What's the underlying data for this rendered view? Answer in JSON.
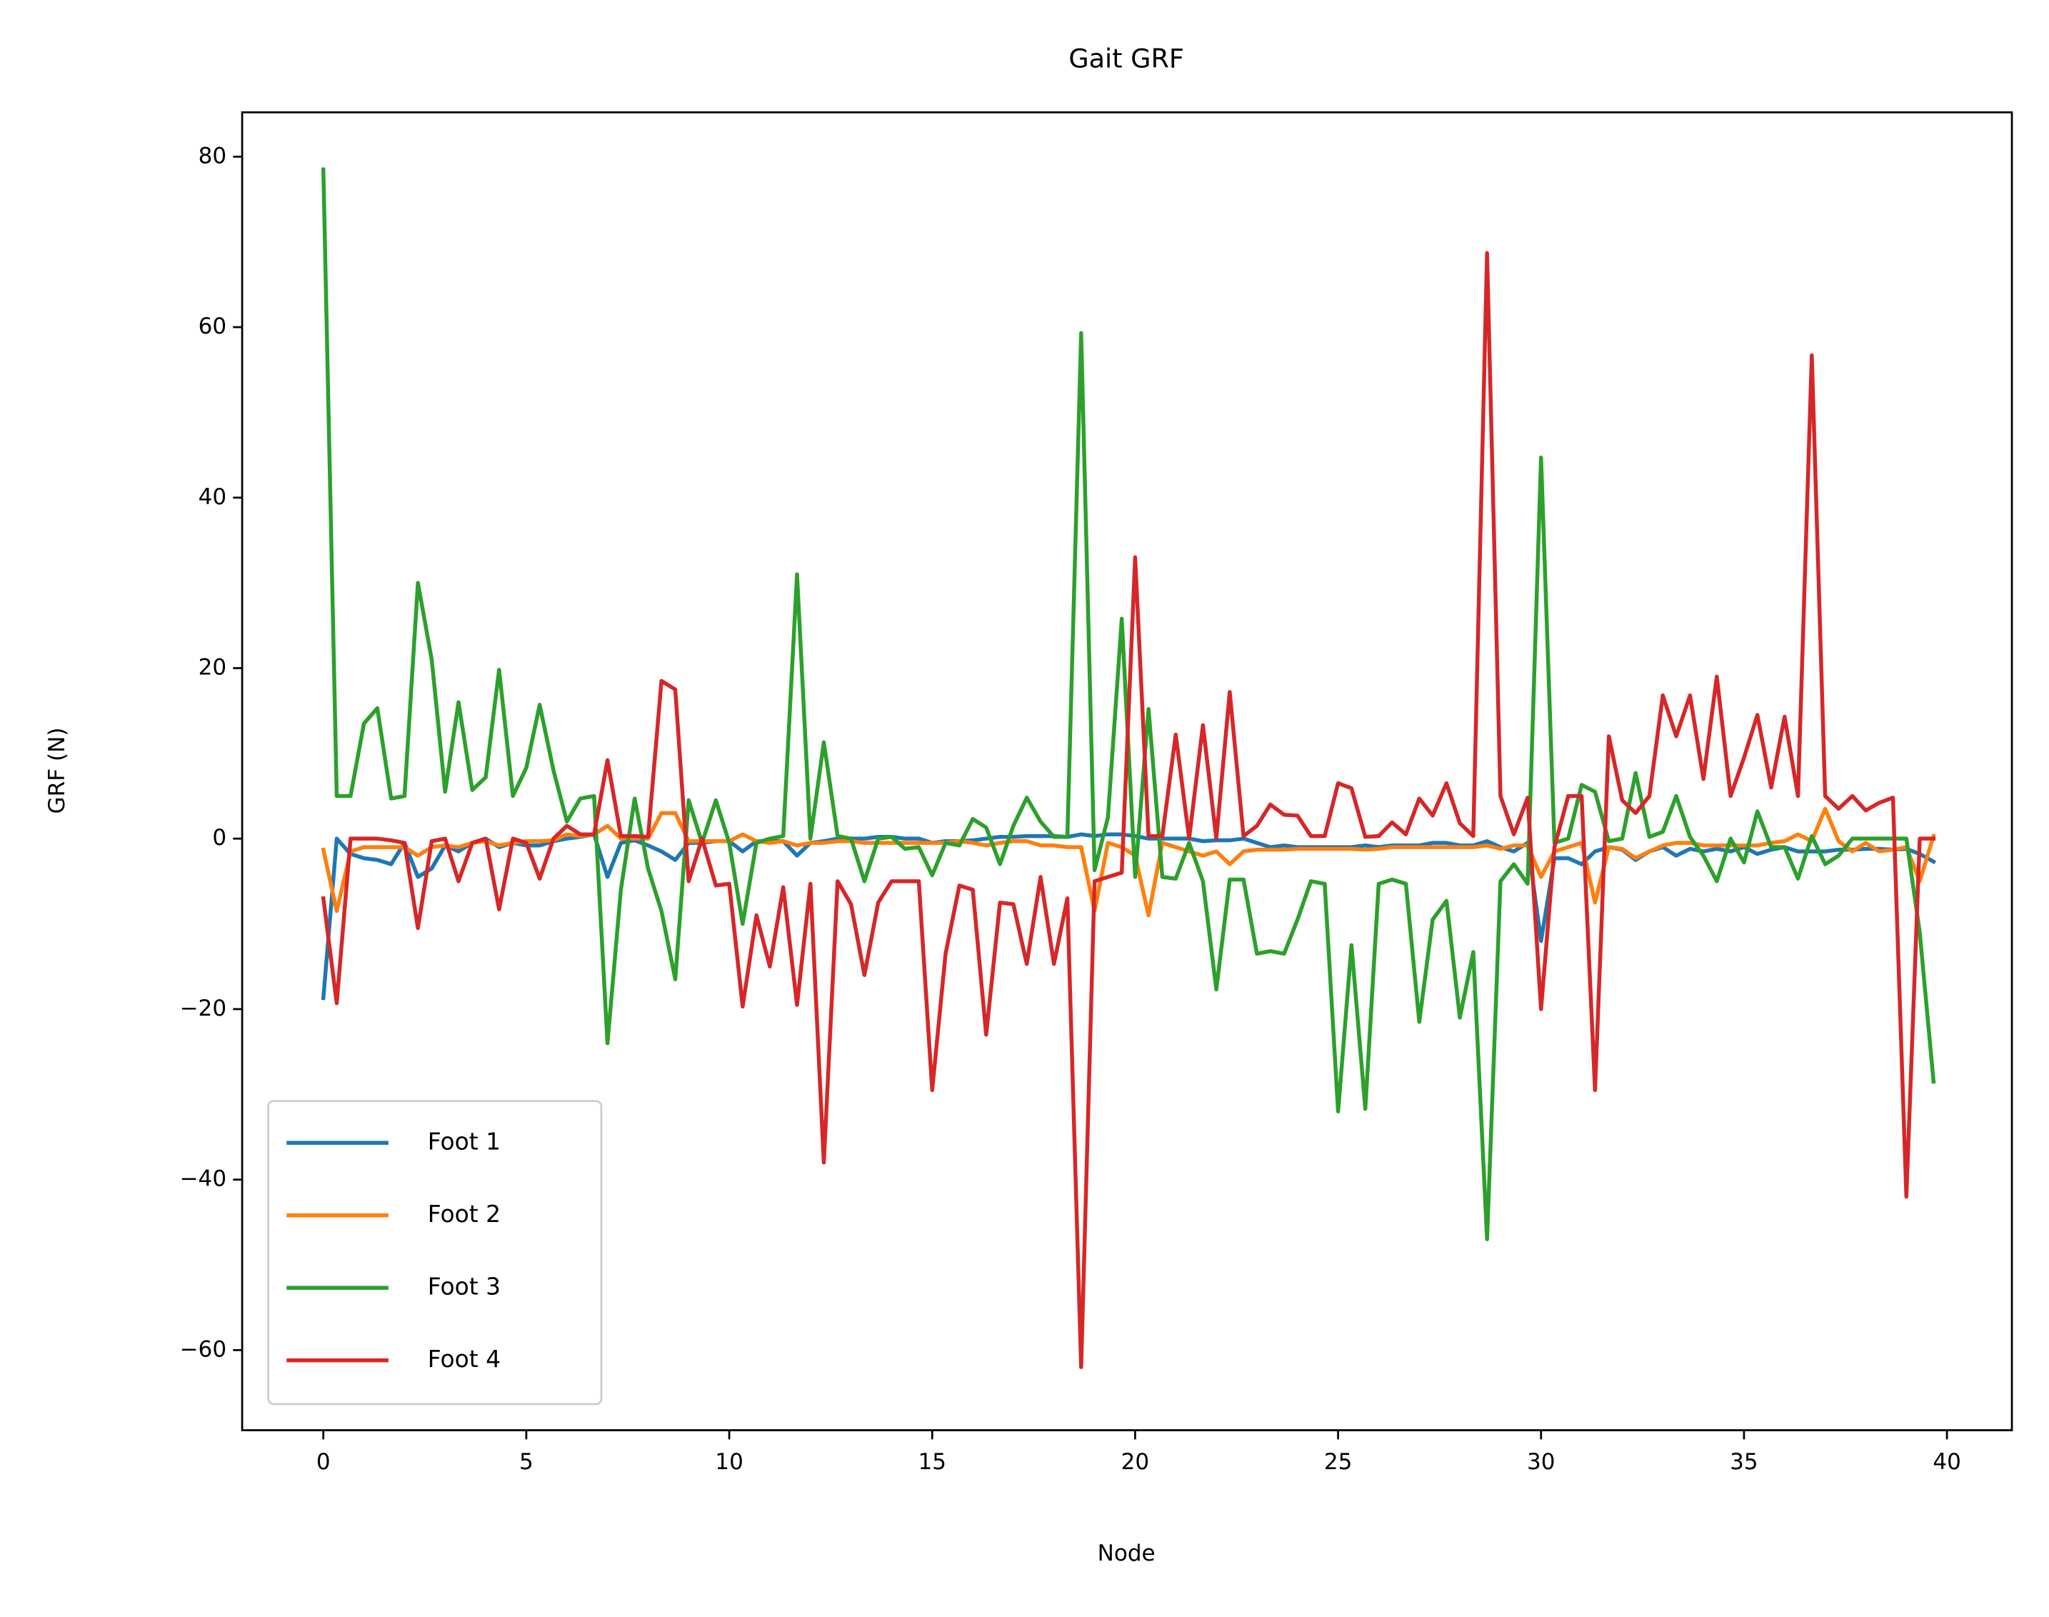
{
  "chart_data": {
    "type": "line",
    "title": "Gait GRF",
    "x_label": "Node",
    "y_label": "GRF (N)",
    "x": [
      0,
      0.33,
      0.67,
      1,
      1.33,
      1.67,
      2,
      2.33,
      2.67,
      3,
      3.33,
      3.67,
      4,
      4.33,
      4.67,
      5,
      5.33,
      5.67,
      6,
      6.33,
      6.67,
      7,
      7.33,
      7.67,
      8,
      8.33,
      8.67,
      9,
      9.33,
      9.67,
      10,
      10.33,
      10.67,
      11,
      11.33,
      11.67,
      12,
      12.33,
      12.67,
      13,
      13.33,
      13.67,
      14,
      14.33,
      14.67,
      15,
      15.33,
      15.67,
      16,
      16.33,
      16.67,
      17,
      17.33,
      17.67,
      18,
      18.33,
      18.67,
      19,
      19.33,
      19.67,
      20,
      20.33,
      20.67,
      21,
      21.33,
      21.67,
      22,
      22.33,
      22.67,
      23,
      23.33,
      23.67,
      24,
      24.33,
      24.67,
      25,
      25.33,
      25.67,
      26,
      26.33,
      26.67,
      27,
      27.33,
      27.67,
      28,
      28.33,
      28.67,
      29,
      29.33,
      29.67,
      30,
      30.33,
      30.67,
      31,
      31.33,
      31.67,
      32,
      32.33,
      32.67,
      33,
      33.33,
      33.67,
      34,
      34.33,
      34.67,
      35,
      35.33,
      35.67,
      36,
      36.33,
      36.67,
      37,
      37.33,
      37.67,
      38,
      38.33,
      38.67,
      39,
      39.33,
      39.67
    ],
    "series": [
      {
        "name": "Foot 1",
        "color": "#1f77b4",
        "values": [
          -18.7,
          0,
          -1.8,
          -2.3,
          -2.5,
          -3,
          -0.5,
          -4.5,
          -3.5,
          -0.8,
          -1.5,
          -0.5,
          0,
          -1,
          -0.5,
          -0.8,
          -0.8,
          -0.3,
          0,
          0.2,
          0.5,
          -4.5,
          -0.5,
          -0.2,
          -0.8,
          -1.5,
          -2.5,
          -0.5,
          -0.5,
          -0.3,
          -0.3,
          -1.5,
          -0.3,
          -0.3,
          -0.3,
          -2,
          -0.5,
          -0.3,
          0,
          0,
          0,
          0.2,
          0.2,
          0,
          0,
          -0.5,
          -0.3,
          -0.3,
          -0.2,
          0,
          0.2,
          0.2,
          0.3,
          0.3,
          0.3,
          0.2,
          0.5,
          0.3,
          0.5,
          0.5,
          0.3,
          0,
          0,
          0,
          0,
          -0.3,
          -0.2,
          -0.2,
          0,
          -0.5,
          -1,
          -0.8,
          -1,
          -1,
          -1,
          -1,
          -1,
          -0.8,
          -1,
          -0.8,
          -0.8,
          -0.8,
          -0.5,
          -0.5,
          -0.8,
          -0.8,
          -0.3,
          -1,
          -1.5,
          -0.5,
          -12,
          -2.3,
          -2.3,
          -3,
          -1.5,
          -1,
          -1.3,
          -2.5,
          -1.5,
          -1,
          -2,
          -1.2,
          -1.5,
          -1.2,
          -1.5,
          -1,
          -1.8,
          -1.3,
          -1,
          -1.5,
          -1.5,
          -1.5,
          -1.3,
          -1.3,
          -1.2,
          -1.2,
          -1.3,
          -1.2,
          -1.8,
          -2.7
        ]
      },
      {
        "name": "Foot 2",
        "color": "#ff7f0e",
        "values": [
          -1.3,
          -8.5,
          -1.5,
          -1,
          -1,
          -1,
          -1,
          -2,
          -1,
          -0.8,
          -1,
          -0.5,
          -0.3,
          -0.8,
          -0.5,
          -0.3,
          -0.3,
          -0.2,
          0.5,
          0.3,
          0.5,
          1.5,
          0,
          0,
          0,
          3,
          3,
          -0.3,
          -0.3,
          -0.3,
          -0.3,
          0.5,
          -0.3,
          -0.5,
          -0.3,
          -0.8,
          -0.5,
          -0.5,
          -0.3,
          -0.3,
          -0.5,
          -0.5,
          -0.5,
          -0.5,
          -0.5,
          -0.5,
          -0.5,
          -0.3,
          -0.5,
          -0.8,
          -0.5,
          -0.3,
          -0.3,
          -0.8,
          -0.8,
          -1,
          -1,
          -8.5,
          -0.5,
          -1,
          -2,
          -9,
          -0.5,
          -1,
          -1.5,
          -2,
          -1.5,
          -3,
          -1.5,
          -1.3,
          -1.3,
          -1.3,
          -1.2,
          -1.2,
          -1.2,
          -1.2,
          -1.2,
          -1.3,
          -1.2,
          -1,
          -1,
          -1,
          -1,
          -1,
          -1,
          -1,
          -0.8,
          -1.2,
          -0.8,
          -0.8,
          -4.5,
          -1.5,
          -1,
          -0.5,
          -7.5,
          -1,
          -1.2,
          -2.3,
          -1.5,
          -0.8,
          -0.5,
          -0.5,
          -0.8,
          -0.8,
          -0.8,
          -0.8,
          -0.8,
          -0.5,
          -0.3,
          0.5,
          -0.3,
          3.5,
          -0.3,
          -1.5,
          -0.5,
          -1.5,
          -1.3,
          -1,
          -5,
          0.3
        ]
      },
      {
        "name": "Foot 3",
        "color": "#2ca02c",
        "values": [
          78.5,
          5,
          5,
          13.5,
          15.3,
          4.7,
          5,
          30,
          21,
          5.5,
          16,
          5.7,
          7.2,
          19.8,
          5,
          8.3,
          15.7,
          8,
          2,
          4.7,
          5,
          -24,
          -6,
          4.7,
          -3.5,
          -8.5,
          -16.5,
          4.5,
          -0.5,
          4.5,
          -0.5,
          -10,
          -0.5,
          0,
          0.3,
          31,
          0,
          11.3,
          0.3,
          0,
          -5,
          0,
          0.2,
          -1.2,
          -1,
          -4.3,
          -0.5,
          -0.8,
          2.3,
          1.3,
          -3,
          1.5,
          4.8,
          2,
          0.2,
          0.2,
          59.3,
          -3.7,
          2.5,
          25.8,
          -4.5,
          15.2,
          -4.5,
          -4.7,
          -0.5,
          -5,
          -17.7,
          -4.8,
          -4.8,
          -13.5,
          -13.2,
          -13.5,
          -9.5,
          -5,
          -5.3,
          -32,
          -12.5,
          -31.7,
          -5.3,
          -4.8,
          -5.3,
          -21.5,
          -9.5,
          -7.3,
          -21,
          -13.3,
          -47,
          -5,
          -3,
          -5.3,
          44.7,
          -0.5,
          0,
          6.3,
          5.5,
          -0.3,
          0,
          7.7,
          0.2,
          0.8,
          5,
          0.2,
          -2,
          -5,
          0,
          -2.8,
          3.2,
          -1,
          -1,
          -4.7,
          0.3,
          -3,
          -2,
          0,
          0,
          0,
          0,
          0,
          -11,
          -28.5
        ]
      },
      {
        "name": "Foot 4",
        "color": "#d62728",
        "values": [
          -7,
          -19.3,
          0,
          0,
          0,
          -0.2,
          -0.5,
          -10.5,
          -0.3,
          0,
          -5,
          -0.5,
          0,
          -8.3,
          0,
          -0.5,
          -4.7,
          0,
          1.5,
          0.5,
          0.5,
          9.2,
          0.3,
          0.3,
          0.2,
          18.5,
          17.5,
          -5,
          0,
          -5.5,
          -5.3,
          -19.7,
          -9,
          -15,
          -5.7,
          -19.5,
          -5.3,
          -38,
          -5,
          -7.7,
          -16,
          -7.5,
          -5,
          -5,
          -5,
          -29.5,
          -13.5,
          -5.5,
          -6,
          -23,
          -7.5,
          -7.7,
          -14.7,
          -4.5,
          -14.7,
          -7,
          -62,
          -5,
          -4.5,
          -4,
          33,
          0.3,
          0.3,
          12.2,
          0,
          13.3,
          0,
          17.2,
          0.3,
          1.5,
          4,
          2.8,
          2.7,
          0.3,
          0.3,
          6.5,
          5.9,
          0.2,
          0.3,
          1.9,
          0.5,
          4.7,
          2.7,
          6.5,
          1.8,
          0.3,
          68.7,
          5,
          0.5,
          4.8,
          -20,
          -1,
          5,
          5,
          -29.5,
          12,
          4.5,
          3,
          5,
          16.8,
          12,
          16.8,
          7,
          19,
          5,
          9.5,
          14.5,
          6,
          14.3,
          5,
          56.7,
          5,
          3.5,
          5,
          3.3,
          4.2,
          4.8,
          -42,
          0,
          0
        ]
      }
    ],
    "xlim": [
      -2,
      41.6
    ],
    "ylim": [
      -69.4,
      85.2
    ],
    "xticks": [
      0,
      5,
      10,
      15,
      20,
      25,
      30,
      35,
      40
    ],
    "yticks": [
      {
        "value": -60,
        "label": "−60"
      },
      {
        "value": -40,
        "label": "−40"
      },
      {
        "value": -20,
        "label": "−20"
      },
      0,
      20,
      40,
      60,
      80
    ],
    "legend": "lower left"
  }
}
